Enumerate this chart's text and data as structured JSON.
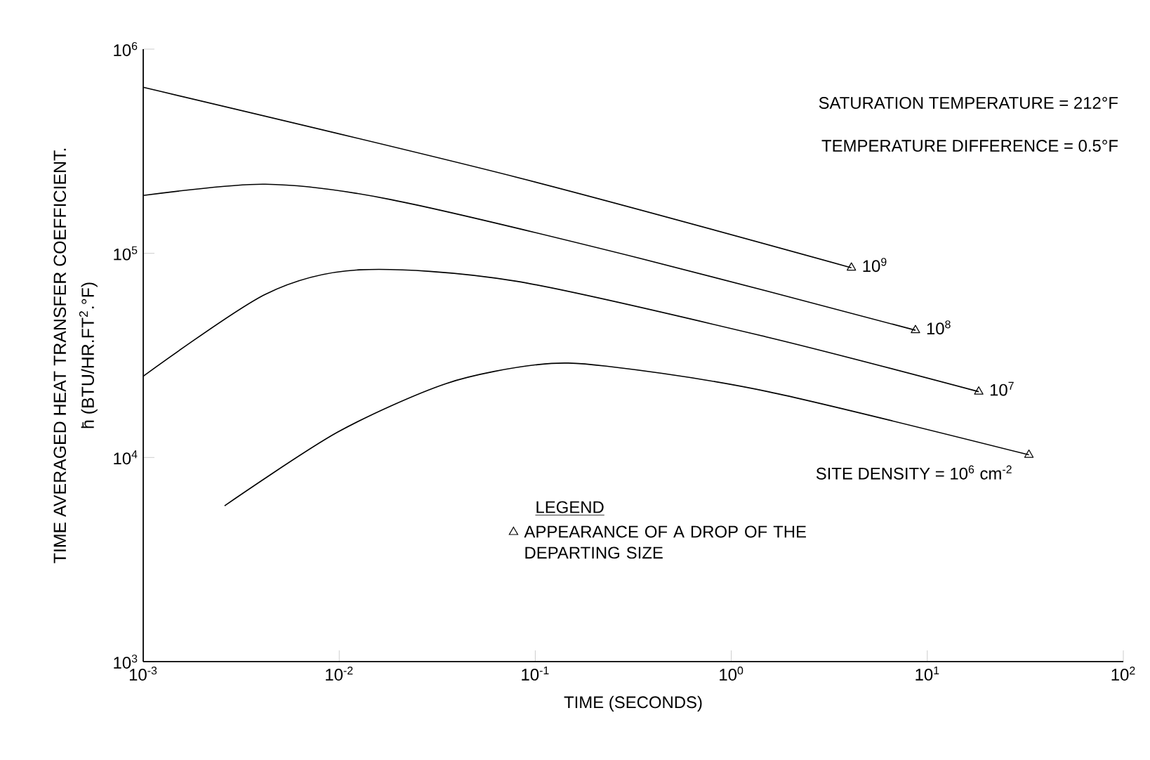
{
  "chart_data": {
    "type": "line",
    "xlabel": "TIME (SECONDS)",
    "ylabel": "TIME AVERAGED HEAT TRANSFER COEFFICIENT. h̄ (BTU/HR.FT$^{2}$.°F)",
    "log": "xy",
    "xlim": [
      0.001,
      100
    ],
    "ylim": [
      1000,
      1000000
    ],
    "xticks": [
      {
        "value": 0.001,
        "label": "10$^{-3}$"
      },
      {
        "value": 0.01,
        "label": "10$^{-2}$"
      },
      {
        "value": 0.1,
        "label": "10$^{-1}$"
      },
      {
        "value": 1,
        "label": "10$^{0}$"
      },
      {
        "value": 10,
        "label": "10$^{1}$"
      },
      {
        "value": 100,
        "label": "10$^{2}$"
      }
    ],
    "yticks": [
      {
        "value": 1000,
        "label": "10$^{3}$"
      },
      {
        "value": 10000,
        "label": "10$^{4}$"
      },
      {
        "value": 100000,
        "label": "10$^{5}$"
      },
      {
        "value": 1000000,
        "label": "10$^{6}$"
      }
    ],
    "grid": false,
    "legend": "bottom",
    "legend_title": "LEGEND",
    "marker": "none",
    "line_style": "solid",
    "annotations": [
      "SATURATION TEMPERATURE = 212°F",
      "TEMPERATURE DIFFERENCE = 0.5°F"
    ],
    "series": [
      {
        "name": "10$^{9}$",
        "color": "#000000",
        "x": [
          0.001,
          0.08,
          4.1
        ],
        "values": [
          650000,
          236000,
          85000
        ]
      },
      {
        "name": "10$^{8}$",
        "color": "#000000",
        "x": [
          0.001,
          0.0042,
          0.0185,
          0.35,
          8.7
        ],
        "values": [
          192000,
          218000,
          183000,
          94000,
          42000
        ]
      },
      {
        "name": "10$^{7}$",
        "color": "#000000",
        "x": [
          0.001,
          0.0042,
          0.0127,
          0.08,
          1.5,
          18.3
        ],
        "values": [
          25000,
          63000,
          83000,
          73000,
          39000,
          21000
        ]
      },
      {
        "name": "SITE DENSITY = 10$^{6}$ cm$^{-2}$",
        "color": "#000000",
        "x": [
          0.0026,
          0.0098,
          0.035,
          0.103,
          0.23,
          1.54,
          33
        ],
        "values": [
          5800,
          13300,
          23000,
          28500,
          28000,
          21000,
          10300
        ]
      },
      {
        "name": "APPEARANCE OF A DROP OF THE DEPARTING SIZE",
        "type": "scatter",
        "marker": "triangle",
        "color": "#000000",
        "x": [
          4.1,
          8.7,
          18.3,
          33
        ],
        "values": [
          85000,
          42000,
          21000,
          10300
        ]
      }
    ]
  }
}
